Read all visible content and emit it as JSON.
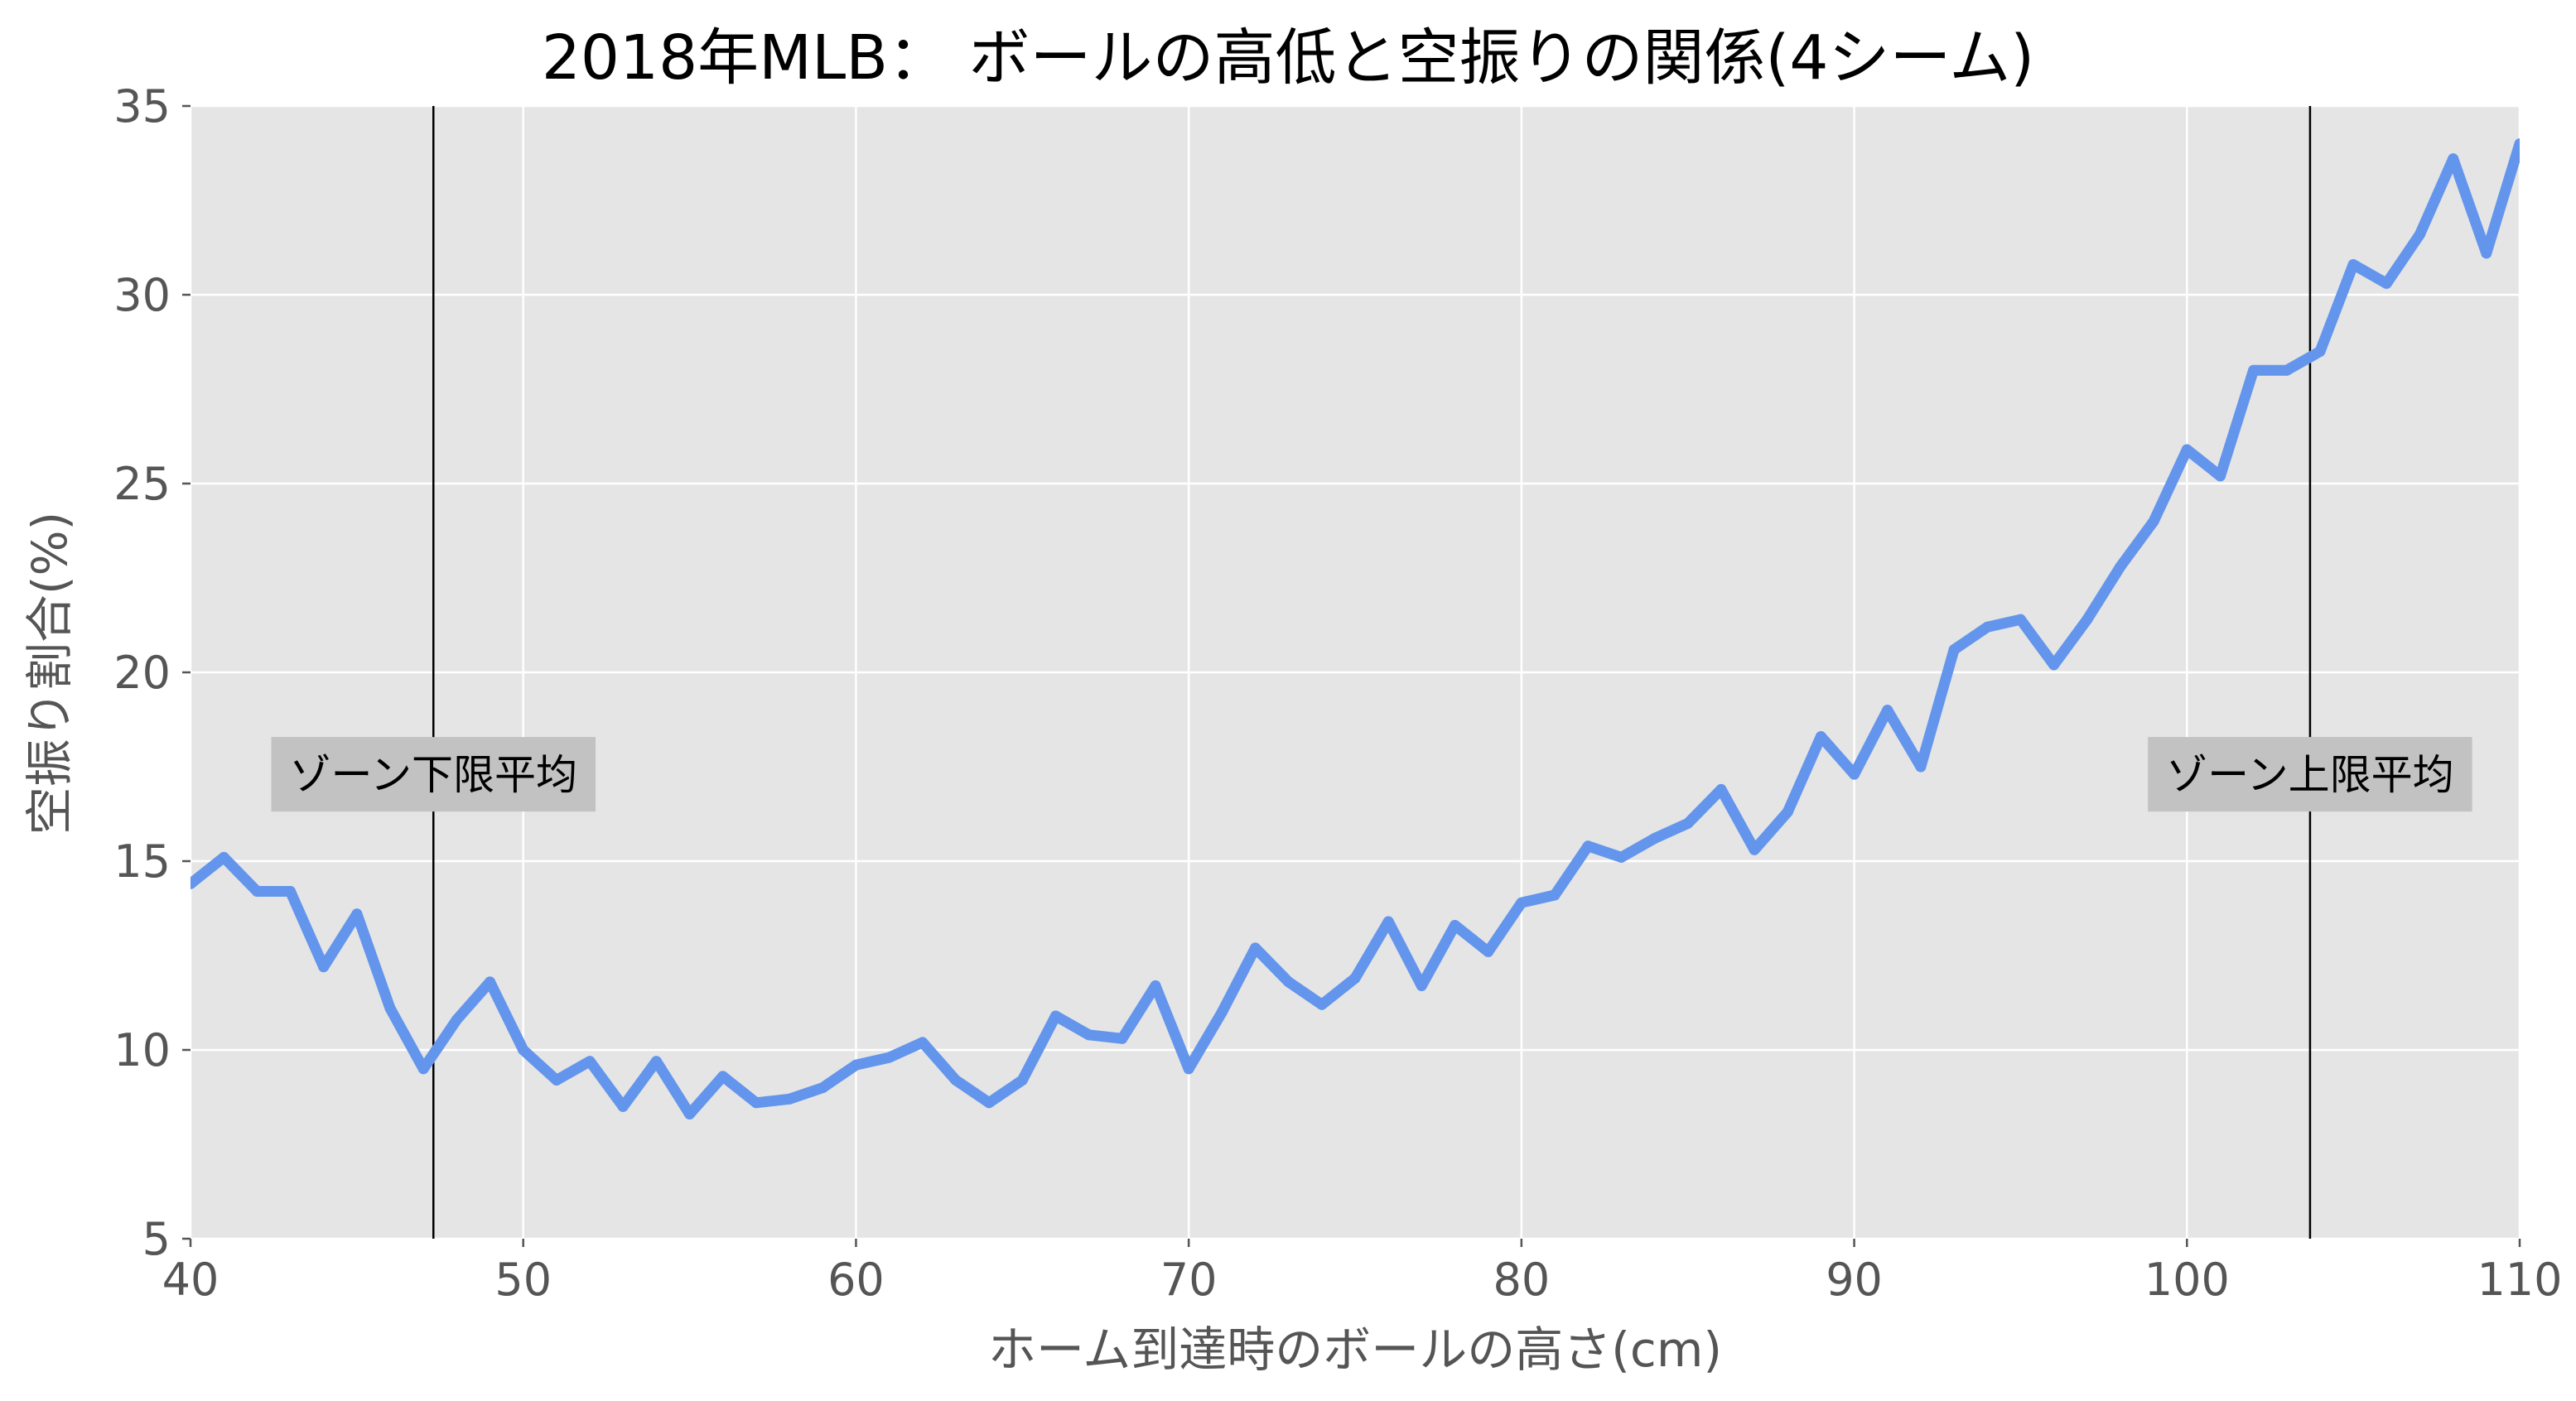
{
  "chart_data": {
    "type": "line",
    "title": "2018年MLB： ボールの高低と空振りの関係(4シーム)",
    "xlabel": "ホーム到達時のボールの高さ(cm)",
    "ylabel": "空振り割合(%)",
    "xlim": [
      40,
      110
    ],
    "ylim": [
      5,
      35
    ],
    "xticks": [
      40,
      50,
      60,
      70,
      80,
      90,
      100,
      110
    ],
    "yticks": [
      5,
      10,
      15,
      20,
      25,
      30,
      35
    ],
    "grid": true,
    "colors": {
      "background": "#e5e5e5",
      "grid": "#ffffff",
      "line": "#6495ed",
      "vline": "#000000",
      "annotation_box": "#c2c2c2"
    },
    "series": [
      {
        "x": [
          40,
          41,
          42,
          43,
          44,
          45,
          46,
          47,
          48,
          49,
          50,
          51,
          52,
          53,
          54,
          55,
          56,
          57,
          58,
          59,
          60,
          61,
          62,
          63,
          64,
          65,
          66,
          67,
          68,
          69,
          70,
          71,
          72,
          73,
          74,
          75,
          76,
          77,
          78,
          79,
          80,
          81,
          82,
          83,
          84,
          85,
          86,
          87,
          88,
          89,
          90,
          91,
          92,
          93,
          94,
          95,
          96,
          97,
          98,
          99,
          100,
          101,
          102,
          103,
          104,
          105,
          106,
          107,
          108,
          109,
          110
        ],
        "values": [
          14.4,
          15.1,
          14.2,
          14.2,
          12.2,
          13.6,
          11.1,
          9.5,
          10.8,
          11.8,
          10.0,
          9.2,
          9.7,
          8.5,
          9.7,
          8.3,
          9.3,
          8.6,
          8.7,
          9.0,
          9.6,
          9.8,
          10.2,
          9.2,
          8.6,
          9.2,
          10.9,
          10.4,
          10.3,
          11.7,
          9.5,
          11.0,
          12.7,
          11.8,
          11.2,
          11.9,
          13.4,
          11.7,
          13.3,
          12.6,
          13.9,
          14.1,
          15.4,
          15.1,
          15.6,
          16.0,
          16.9,
          15.3,
          16.3,
          18.3,
          17.3,
          19.0,
          17.5,
          20.6,
          21.2,
          21.4,
          20.2,
          21.4,
          22.8,
          24.0,
          25.9,
          25.2,
          28.0,
          28.0,
          28.5,
          30.8,
          30.3,
          31.6,
          33.6,
          31.1,
          34.0
        ]
      }
    ],
    "vlines": [
      {
        "x": 47.3,
        "label": "ゾーン下限平均",
        "label_y": 17.3
      },
      {
        "x": 103.7,
        "label": "ゾーン上限平均",
        "label_y": 17.3
      }
    ]
  }
}
